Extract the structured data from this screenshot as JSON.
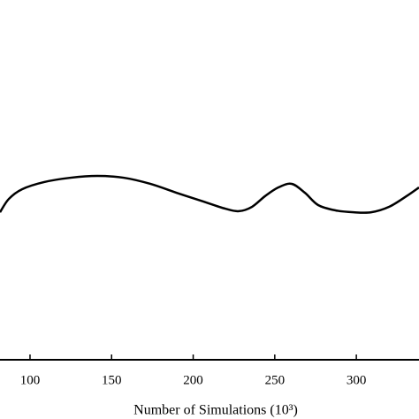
{
  "chart_data": {
    "type": "line",
    "x_label": "Number of Simulations (10³)",
    "x": [
      81.6,
      87.0,
      95.1,
      108.7,
      124.9,
      141.2,
      157.4,
      173.7,
      189.9,
      206.2,
      219.7,
      227.9,
      236.0,
      244.1,
      252.2,
      260.4,
      268.5,
      276.6,
      287.5,
      298.3,
      309.1,
      320.0,
      330.8,
      338.4
    ],
    "series": [
      {
        "color": "#000000",
        "values": [
          41.0,
          44.7,
          47.4,
          49.4,
          50.6,
          51.1,
          50.6,
          48.9,
          46.4,
          44.0,
          42.0,
          41.3,
          42.5,
          45.5,
          47.9,
          48.9,
          46.4,
          43.0,
          41.5,
          41.0,
          41.0,
          42.5,
          45.5,
          47.9
        ]
      }
    ],
    "xlim": [
      81.6,
      338.4
    ],
    "xticks": [
      100,
      150,
      200,
      250,
      300
    ],
    "ylim": [
      0,
      100
    ]
  }
}
